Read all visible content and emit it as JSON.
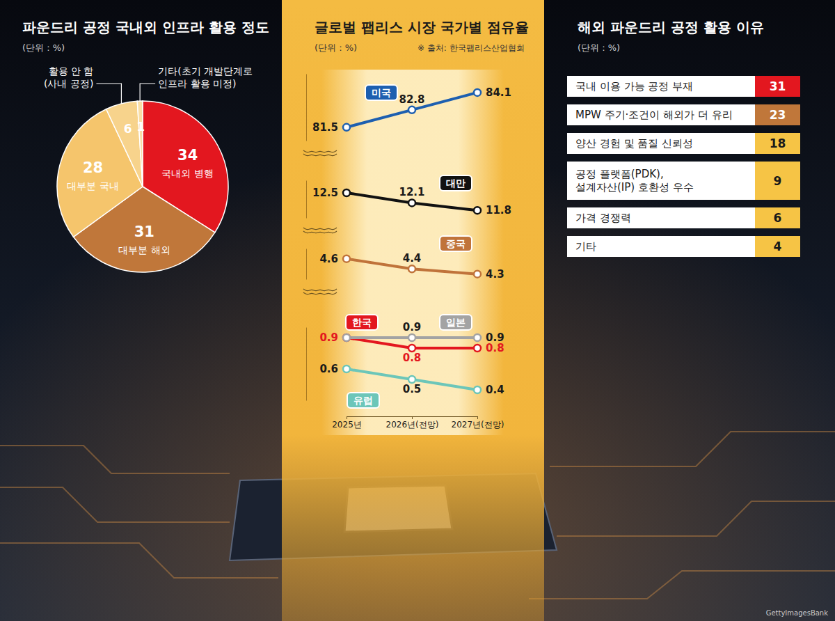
{
  "credit": "GettyImagesBank",
  "chart_data": [
    {
      "type": "pie",
      "title": "파운드리 공정 국내외 인프라 활용 정도",
      "subtitle": "(단위 : %)",
      "categories": [
        "국내외 병행",
        "대부분 해외",
        "대부분 국내",
        "활용 안 함\n(사내 공정)",
        "기타(초기 개발단계로\n인프라 활용 미정)"
      ],
      "values": [
        34,
        31,
        28,
        6,
        1
      ],
      "colors": [
        "#e3171f",
        "#c0773a",
        "#f5c56c",
        "#f7d38c",
        "#f9dea6"
      ],
      "data_labels": true
    },
    {
      "type": "line",
      "title": "글로벌 팹리스 시장 국가별 점유율",
      "subtitle": "(단위 : %)",
      "annotations": [
        "※ 출처: 한국팹리스산업협회"
      ],
      "categories": [
        "2025년",
        "2026년(전망)",
        "2027년(전망)"
      ],
      "series": [
        {
          "name": "미국",
          "color": "#1d5fb0",
          "values": [
            81.5,
            82.8,
            84.1
          ]
        }
      ],
      "ylim": [
        80.5,
        85.5
      ],
      "tick_labels": false,
      "data_labels": true
    },
    {
      "type": "line",
      "categories": [
        "2025년",
        "2026년(전망)",
        "2027년(전망)"
      ],
      "series": [
        {
          "name": "대만",
          "color": "#111111",
          "values": [
            12.5,
            12.1,
            11.8
          ]
        }
      ],
      "ylim": [
        11.5,
        13
      ],
      "tick_labels": false,
      "data_labels": true
    },
    {
      "type": "line",
      "categories": [
        "2025년",
        "2026년(전망)",
        "2027년(전망)"
      ],
      "series": [
        {
          "name": "중국",
          "color": "#c0733a",
          "values": [
            4.6,
            4.4,
            4.3
          ]
        }
      ],
      "ylim": [
        4.2,
        4.8
      ],
      "tick_labels": false,
      "data_labels": true
    },
    {
      "type": "line",
      "categories": [
        "2025년",
        "2026년(전망)",
        "2027년(전망)"
      ],
      "series": [
        {
          "name": "한국",
          "color": "#e3171f",
          "values": [
            0.9,
            0.8,
            0.8
          ]
        },
        {
          "name": "일본",
          "color": "#a3a3a3",
          "values": [
            0.9,
            0.9,
            0.9
          ]
        },
        {
          "name": "유럽",
          "color": "#6cc6b9",
          "values": [
            0.6,
            0.5,
            0.4
          ]
        }
      ],
      "ylim": [
        0.3,
        1.0
      ],
      "tick_labels": "x",
      "data_labels": true
    },
    {
      "type": "table",
      "title": "해외 파운드리 공정 활용 이유",
      "subtitle": "(단위 : %)",
      "categories": [
        "국내 이용 가능 공정 부재",
        "MPW 주기·조건이 해외가 더 유리",
        "양산 경험 및 품질 신뢰성",
        "공정 플랫폼(PDK),\n설계자산(IP) 호환성 우수",
        "가격 경쟁력",
        "기타"
      ],
      "values": [
        31,
        23,
        18,
        9,
        6,
        4
      ],
      "colors": [
        "#e3171f",
        "#c0773a",
        "#f6c445",
        "#f6c445",
        "#f6c445",
        "#f6c445"
      ]
    }
  ]
}
